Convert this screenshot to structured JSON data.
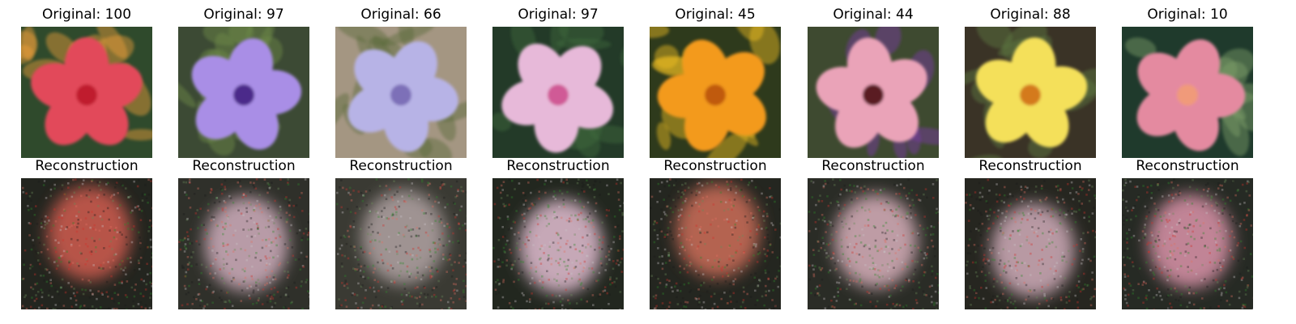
{
  "figure": {
    "rows": [
      {
        "kind": "original",
        "panels": [
          {
            "title": "Original: 100",
            "subject": "red hibiscus flower",
            "colors": {
              "bg": "#2f4a2c",
              "petal": "#e2485a",
              "center": "#c01e2e",
              "accent": "#f0a03a"
            }
          },
          {
            "title": "Original: 97",
            "subject": "lavender petunia-like flower",
            "colors": {
              "bg": "#3c4a34",
              "petal": "#a98ee6",
              "center": "#4b2a8a",
              "accent": "#6f8c4a"
            }
          },
          {
            "title": "Original: 66",
            "subject": "pale purple crocus",
            "colors": {
              "bg": "#a49682",
              "petal": "#b7b3e6",
              "center": "#7d6fb8",
              "accent": "#5a6a3a"
            }
          },
          {
            "title": "Original: 97",
            "subject": "light pink flower",
            "colors": {
              "bg": "#233a28",
              "petal": "#e7b9d9",
              "center": "#d05a96",
              "accent": "#3f6a3c"
            }
          },
          {
            "title": "Original: 45",
            "subject": "orange wallflowers",
            "colors": {
              "bg": "#2e3a1c",
              "petal": "#f39a1c",
              "center": "#c05a10",
              "accent": "#f2c021"
            }
          },
          {
            "title": "Original: 44",
            "subject": "pink flowers with dark centers",
            "colors": {
              "bg": "#3e4a30",
              "petal": "#eaa3b8",
              "center": "#5a1c24",
              "accent": "#7b3aa8"
            }
          },
          {
            "title": "Original: 88",
            "subject": "yellow nasturtium",
            "colors": {
              "bg": "#3a3326",
              "petal": "#f4e05a",
              "center": "#d47a1c",
              "accent": "#5f7a42"
            }
          },
          {
            "title": "Original: 10",
            "subject": "pink snapdragons",
            "colors": {
              "bg": "#1f3a2c",
              "petal": "#e48aa0",
              "center": "#f09a7a",
              "accent": "#7fa06a"
            }
          }
        ]
      },
      {
        "kind": "reconstruction",
        "panels": [
          {
            "title": "Reconstruction",
            "colors": {
              "bg": "#23251f",
              "blob": "#c85a4e",
              "cy": 0.42
            }
          },
          {
            "title": "Reconstruction",
            "colors": {
              "bg": "#2f302a",
              "blob": "#c7a7b5",
              "cy": 0.5
            }
          },
          {
            "title": "Reconstruction",
            "colors": {
              "bg": "#3a3a33",
              "blob": "#aa9d9d",
              "cy": 0.45
            }
          },
          {
            "title": "Reconstruction",
            "colors": {
              "bg": "#22271f",
              "blob": "#d8b6c8",
              "cy": 0.52
            }
          },
          {
            "title": "Reconstruction",
            "colors": {
              "bg": "#242620",
              "blob": "#c46b56",
              "cy": 0.4
            }
          },
          {
            "title": "Reconstruction",
            "colors": {
              "bg": "#2a2c26",
              "blob": "#cfa9b3",
              "cy": 0.48
            }
          },
          {
            "title": "Reconstruction",
            "colors": {
              "bg": "#262620",
              "blob": "#c8a6b2",
              "cy": 0.55
            }
          },
          {
            "title": "Reconstruction",
            "colors": {
              "bg": "#262a24",
              "blob": "#d28ea3",
              "cy": 0.48
            }
          }
        ]
      }
    ]
  }
}
